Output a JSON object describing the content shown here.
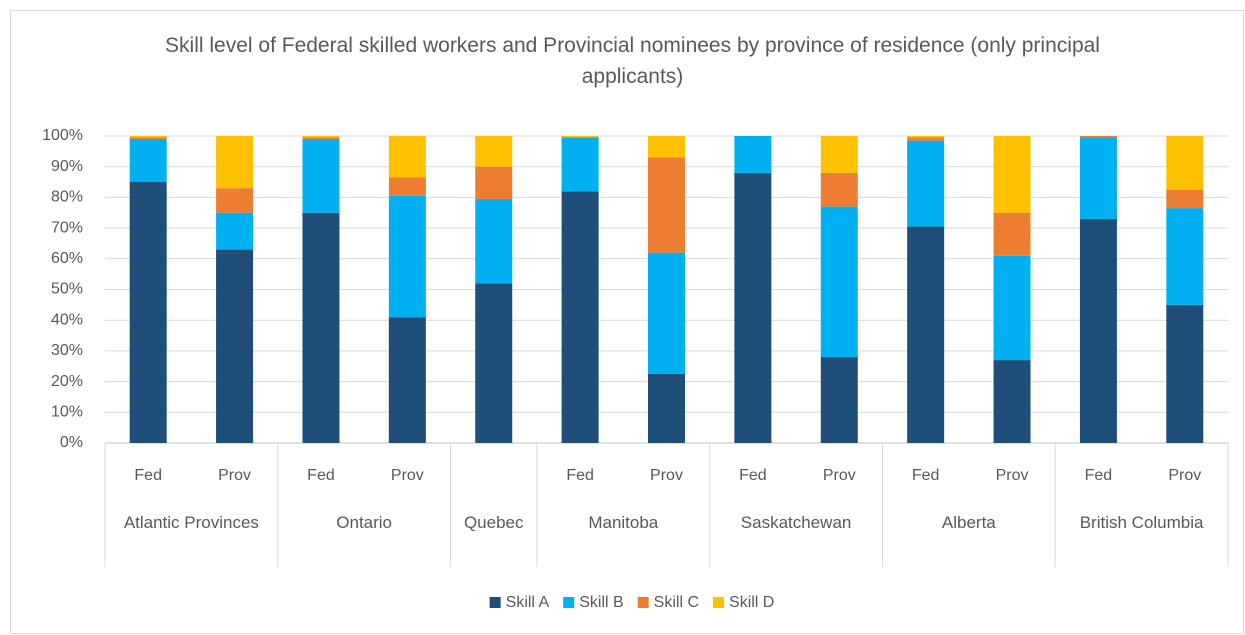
{
  "chart_data": {
    "type": "stacked-bar",
    "title": "Skill level of Federal skilled workers and Provincial nominees by province of residence (only principal applicants)",
    "groups": [
      {
        "name": "Atlantic Provinces",
        "categories": [
          "Fed",
          "Prov"
        ]
      },
      {
        "name": "Ontario",
        "categories": [
          "Fed",
          "Prov"
        ]
      },
      {
        "name": "Quebec",
        "categories": [
          null
        ]
      },
      {
        "name": "Manitoba",
        "categories": [
          "Fed",
          "Prov"
        ]
      },
      {
        "name": "Saskatchewan",
        "categories": [
          "Fed",
          "Prov"
        ]
      },
      {
        "name": "Alberta",
        "categories": [
          "Fed",
          "Prov"
        ]
      },
      {
        "name": "British Columbia",
        "categories": [
          "Fed",
          "Prov"
        ]
      }
    ],
    "series": [
      {
        "name": "Skill A",
        "color": "#1f4e79",
        "values": [
          85,
          63,
          75,
          41,
          52,
          82,
          22.5,
          88,
          28,
          70.5,
          27,
          73,
          45
        ]
      },
      {
        "name": "Skill B",
        "color": "#00b0f0",
        "values": [
          14,
          12,
          24,
          39.5,
          27.5,
          17.5,
          39.5,
          12,
          49,
          28,
          34,
          26.5,
          31.5
        ]
      },
      {
        "name": "Skill C",
        "color": "#ed7d31",
        "values": [
          0.5,
          8,
          0.5,
          6,
          10.5,
          0,
          31,
          0,
          11,
          1,
          14,
          0.5,
          6
        ]
      },
      {
        "name": "Skill D",
        "color": "#ffc000",
        "values": [
          0.5,
          17,
          0.5,
          13.5,
          10,
          0.5,
          7,
          0,
          12,
          0.5,
          25,
          0,
          17.5
        ]
      }
    ],
    "ylim": [
      0,
      100
    ],
    "yticks": [
      {
        "value": 0,
        "label": "0%"
      },
      {
        "value": 10,
        "label": "10%"
      },
      {
        "value": 20,
        "label": "20%"
      },
      {
        "value": 30,
        "label": "30%"
      },
      {
        "value": 40,
        "label": "40%"
      },
      {
        "value": 50,
        "label": "50%"
      },
      {
        "value": 60,
        "label": "60%"
      },
      {
        "value": 70,
        "label": "70%"
      },
      {
        "value": 80,
        "label": "80%"
      },
      {
        "value": 90,
        "label": "90%"
      },
      {
        "value": 100,
        "label": "100%"
      }
    ],
    "grid": true
  }
}
